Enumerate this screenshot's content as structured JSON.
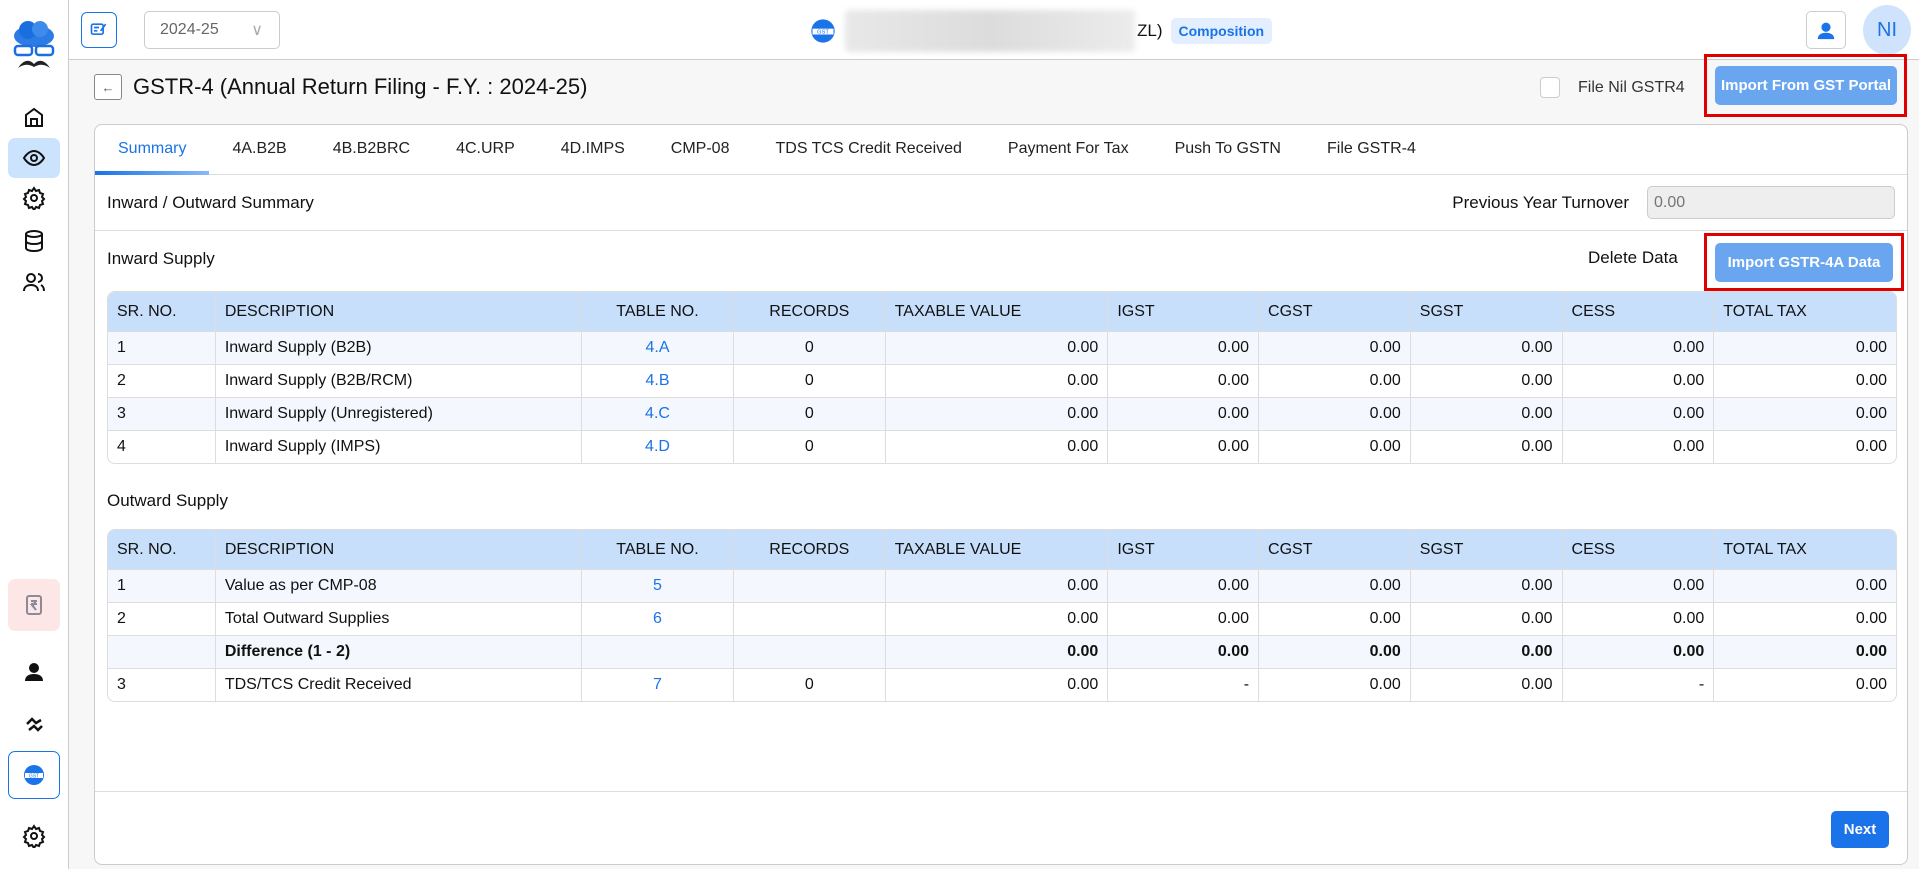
{
  "topbar": {
    "fy": "2024-25",
    "gstin_visible_tail": "ZL)",
    "badge": "Composition",
    "avatar": "NI"
  },
  "page": {
    "title": "GSTR-4 (Annual Return Filing - F.Y. : 2024-25)",
    "file_nil": "File Nil GSTR4",
    "import_portal": "Import From GST Portal"
  },
  "tabs": [
    "Summary",
    "4A.B2B",
    "4B.B2BRC",
    "4C.URP",
    "4D.IMPS",
    "CMP-08",
    "TDS TCS Credit Received",
    "Payment For Tax",
    "Push To GSTN",
    "File GSTR-4"
  ],
  "summary": {
    "title": "Inward / Outward Summary",
    "pyt_label": "Previous Year Turnover",
    "pyt_placeholder": "0.00"
  },
  "inward": {
    "title": "Inward Supply",
    "delete": "Delete Data",
    "import": "Import GSTR-4A Data",
    "rows": [
      [
        "1",
        "Inward Supply (B2B)",
        "4.A",
        "0",
        "0.00",
        "0.00",
        "0.00",
        "0.00",
        "0.00",
        "0.00"
      ],
      [
        "2",
        "Inward Supply (B2B/RCM)",
        "4.B",
        "0",
        "0.00",
        "0.00",
        "0.00",
        "0.00",
        "0.00",
        "0.00"
      ],
      [
        "3",
        "Inward Supply (Unregistered)",
        "4.C",
        "0",
        "0.00",
        "0.00",
        "0.00",
        "0.00",
        "0.00",
        "0.00"
      ],
      [
        "4",
        "Inward Supply (IMPS)",
        "4.D",
        "0",
        "0.00",
        "0.00",
        "0.00",
        "0.00",
        "0.00",
        "0.00"
      ]
    ]
  },
  "outward": {
    "title": "Outward Supply",
    "rows": [
      [
        "1",
        "Value as per CMP-08",
        "5",
        "",
        "0.00",
        "0.00",
        "0.00",
        "0.00",
        "0.00",
        "0.00"
      ],
      [
        "2",
        "Total Outward Supplies",
        "6",
        "",
        "0.00",
        "0.00",
        "0.00",
        "0.00",
        "0.00",
        "0.00"
      ],
      [
        "",
        "Difference (1 - 2)",
        "",
        "",
        "0.00",
        "0.00",
        "0.00",
        "0.00",
        "0.00",
        "0.00"
      ],
      [
        "3",
        "TDS/TCS Credit Received",
        "7",
        "0",
        "0.00",
        "-",
        "0.00",
        "0.00",
        "-",
        "0.00"
      ]
    ]
  },
  "columns": [
    "SR. NO.",
    "DESCRIPTION",
    "TABLE NO.",
    "RECORDS",
    "TAXABLE VALUE",
    "IGST",
    "CGST",
    "SGST",
    "CESS",
    "TOTAL TAX"
  ],
  "footer": {
    "next": "Next"
  },
  "colors": {
    "accent": "#1a73e8",
    "header_bg": "#c7dffb",
    "highlight": "#e00000"
  }
}
